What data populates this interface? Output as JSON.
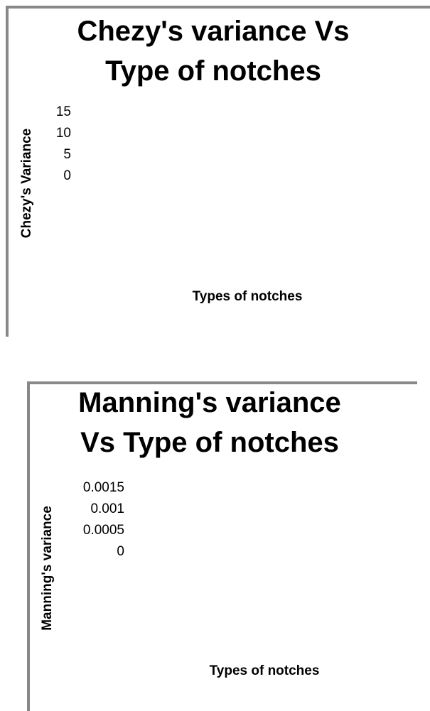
{
  "chart_data": [
    {
      "type": "bar",
      "title": "Chezy's variance Vs Type of notches",
      "x_label": "Types of notches",
      "y_label": "Chezy's Variance",
      "ylim": [
        0,
        15
      ],
      "yticks": [
        15,
        10,
        5,
        0
      ]
    },
    {
      "type": "bar",
      "title": "Manning's variance Vs Type of notches",
      "x_label": "Types of notches",
      "y_label": "Manning's variance",
      "ylim": [
        0,
        0.0015
      ],
      "yticks": [
        0.0015,
        0.001,
        0.0005,
        0
      ]
    }
  ]
}
